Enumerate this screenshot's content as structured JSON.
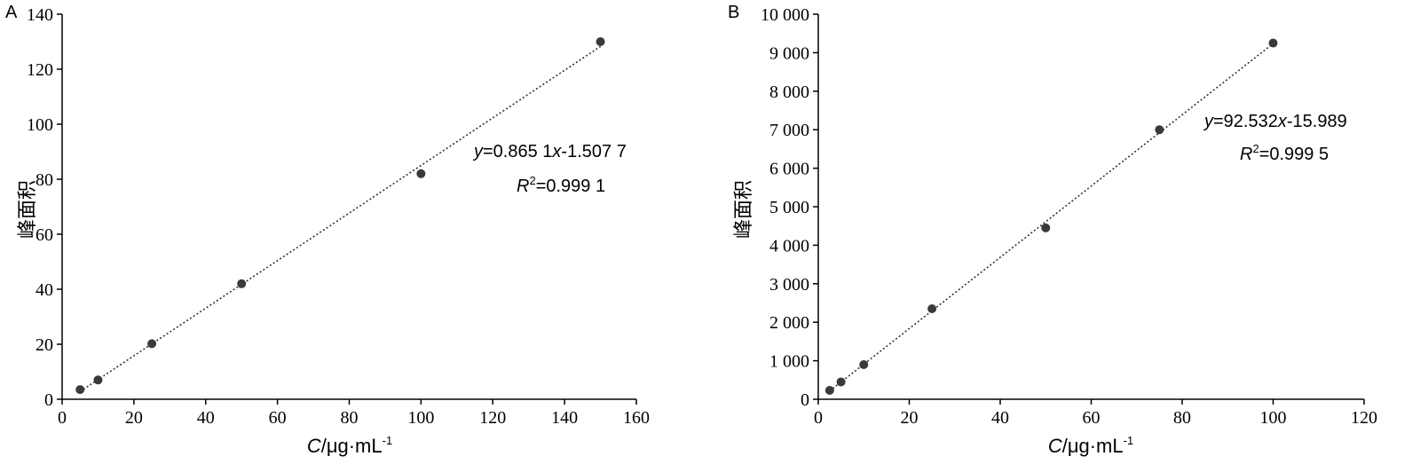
{
  "chart_data": [
    {
      "type": "scatter",
      "panel_label": "A",
      "xlabel": {
        "var": "C",
        "unit": "/μg·mL",
        "sup": "-1"
      },
      "ylabel": "峰面积",
      "xlim": [
        0,
        160
      ],
      "ylim": [
        0,
        140
      ],
      "xticks": [
        0,
        20,
        40,
        60,
        80,
        100,
        120,
        140,
        160
      ],
      "yticks": [
        0,
        20,
        40,
        60,
        80,
        100,
        120,
        140
      ],
      "xtick_labels": [
        "0",
        "20",
        "40",
        "60",
        "80",
        "100",
        "120",
        "140",
        "160"
      ],
      "ytick_labels": [
        "0",
        "20",
        "40",
        "60",
        "80",
        "100",
        "120",
        "140"
      ],
      "points": {
        "x": [
          5,
          10,
          25,
          50,
          100,
          150
        ],
        "y": [
          3.5,
          7,
          20.2,
          42,
          82,
          130
        ]
      },
      "fit": {
        "style": "dotted",
        "slope": 0.8651,
        "intercept": -1.5077,
        "x_range": [
          5,
          150
        ]
      },
      "equation": {
        "y": "y",
        "eq_rest": "=0.865 1",
        "x": "x",
        "eq_tail": "-1.507 7",
        "r": "R",
        "r_sup": "2",
        "r_rest": "=0.999 1"
      },
      "grid": false
    },
    {
      "type": "scatter",
      "panel_label": "B",
      "xlabel": {
        "var": "C",
        "unit": "/μg·mL",
        "sup": "-1"
      },
      "ylabel": "峰面积",
      "xlim": [
        0,
        120
      ],
      "ylim": [
        0,
        10000
      ],
      "xticks": [
        0,
        20,
        40,
        60,
        80,
        100,
        120
      ],
      "yticks": [
        0,
        1000,
        2000,
        3000,
        4000,
        5000,
        6000,
        7000,
        8000,
        9000,
        10000
      ],
      "xtick_labels": [
        "0",
        "20",
        "40",
        "60",
        "80",
        "100",
        "120"
      ],
      "ytick_labels": [
        "0",
        "1 000",
        "2 000",
        "3 000",
        "4 000",
        "5 000",
        "6 000",
        "7 000",
        "8 000",
        "9 000",
        "10 000"
      ],
      "points": {
        "x": [
          2.5,
          5,
          10,
          25,
          50,
          75,
          100
        ],
        "y": [
          230,
          450,
          900,
          2350,
          4450,
          7000,
          9250
        ]
      },
      "fit": {
        "style": "dotted",
        "slope": 92.532,
        "intercept": -15.989,
        "x_range": [
          2.5,
          100
        ]
      },
      "equation": {
        "y": "y",
        "eq_rest": "=92.532",
        "x": "x",
        "eq_tail": "-15.989",
        "r": "R",
        "r_sup": "2",
        "r_rest": "=0.999 5"
      },
      "grid": false
    }
  ]
}
